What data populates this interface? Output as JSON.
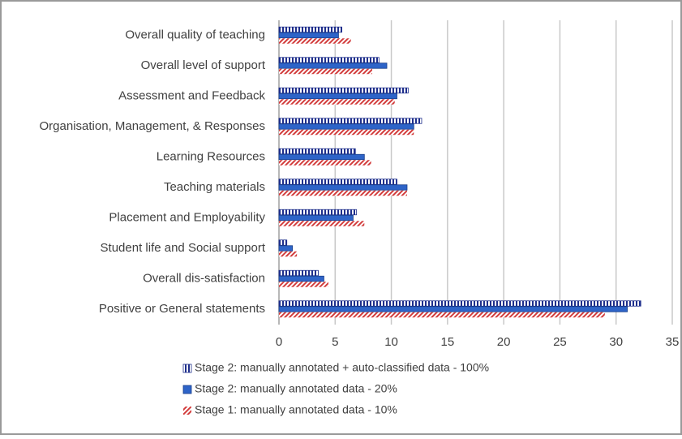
{
  "chart_data": {
    "type": "bar",
    "orientation": "horizontal",
    "categories": [
      "Overall quality of teaching",
      "Overall level of support",
      "Assessment and Feedback",
      "Organisation, Management, & Responses",
      "Learning Resources",
      "Teaching materials",
      "Placement and Employability",
      "Student life and Social support",
      "Overall dis-satisfaction",
      "Positive or General statements"
    ],
    "series": [
      {
        "name": "Stage 2: manually annotated + auto-classified data - 100%",
        "color": "#1f2f8c",
        "pattern": "vertical-stripes",
        "values": [
          5.6,
          8.9,
          11.5,
          12.7,
          6.8,
          10.5,
          6.9,
          0.7,
          3.5,
          32.2
        ]
      },
      {
        "name": "Stage 2: manually annotated data - 20%",
        "color": "#2e64c8",
        "pattern": "solid",
        "values": [
          5.3,
          9.6,
          10.5,
          12.0,
          7.6,
          11.4,
          6.6,
          1.2,
          4.0,
          31.0
        ]
      },
      {
        "name": "Stage 1: manually annotated data - 10%",
        "color": "#d23c3c",
        "pattern": "diagonal-hatch",
        "values": [
          6.4,
          8.3,
          10.3,
          12.0,
          8.2,
          11.4,
          7.6,
          1.6,
          4.4,
          29.0
        ]
      }
    ],
    "xlim": [
      0,
      35
    ],
    "xticks": [
      0,
      5,
      10,
      15,
      20,
      25,
      30,
      35
    ],
    "grid": true
  }
}
